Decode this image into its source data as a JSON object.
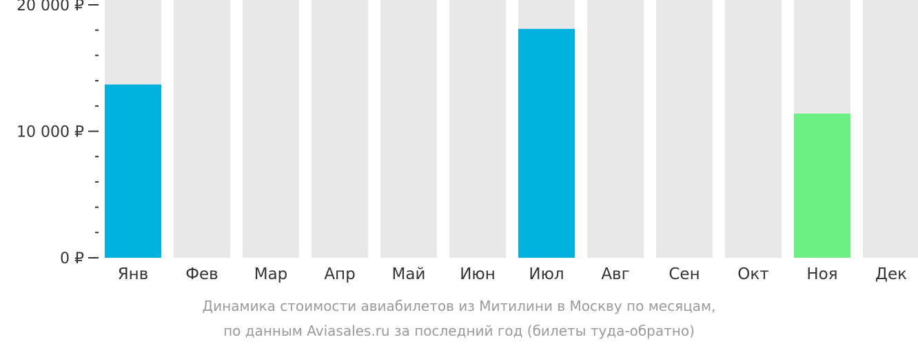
{
  "chart_data": {
    "type": "bar",
    "categories": [
      "Янв",
      "Фев",
      "Мар",
      "Апр",
      "Май",
      "Июн",
      "Июл",
      "Авг",
      "Сен",
      "Окт",
      "Ноя",
      "Дек"
    ],
    "values": [
      13700,
      null,
      null,
      null,
      null,
      null,
      18100,
      null,
      null,
      null,
      11400,
      null
    ],
    "bar_colors": [
      "#00b0dd",
      null,
      null,
      null,
      null,
      null,
      "#00b0dd",
      null,
      null,
      null,
      "#6cf082",
      null
    ],
    "background_bar_color": "#e8e8e8",
    "ylim": [
      0,
      20000
    ],
    "yticks": [
      {
        "value": 0,
        "label": "0 ₽"
      },
      {
        "value": 10000,
        "label": "10 000 ₽"
      },
      {
        "value": 20000,
        "label": "20 000 ₽"
      }
    ],
    "minor_tick_step": 2000,
    "title": "",
    "xlabel": "",
    "ylabel": ""
  },
  "caption": {
    "line1": "Динамика стоимости авиабилетов из Митилини в Москву по месяцам,",
    "line2": "по данным Aviasales.ru за последний год (билеты туда-обратно)"
  }
}
